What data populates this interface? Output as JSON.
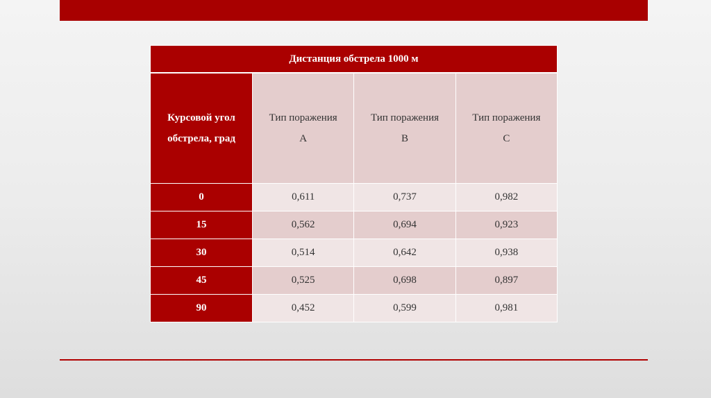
{
  "table": {
    "title": "Дистанция обстрела 1000 м",
    "row_header_line1": "Курсовой угол",
    "row_header_line2": "обстрела, град",
    "columns": [
      {
        "line1": "Тип поражения",
        "line2": "А"
      },
      {
        "line1": "Тип поражения",
        "line2": "В"
      },
      {
        "line1": "Тип поражения",
        "line2": "С"
      }
    ],
    "rows": [
      {
        "angle": "0",
        "values": [
          "0,611",
          "0,737",
          "0,982"
        ]
      },
      {
        "angle": "15",
        "values": [
          "0,562",
          "0,694",
          "0,923"
        ]
      },
      {
        "angle": "30",
        "values": [
          "0,514",
          "0,642",
          "0,938"
        ]
      },
      {
        "angle": "45",
        "values": [
          "0,525",
          "0,698",
          "0,897"
        ]
      },
      {
        "angle": "90",
        "values": [
          "0,452",
          "0,599",
          "0,981"
        ]
      }
    ]
  },
  "colors": {
    "accent": "#aa0000",
    "header_cell": "#e4cdcd",
    "light_cell": "#f0e5e5"
  }
}
